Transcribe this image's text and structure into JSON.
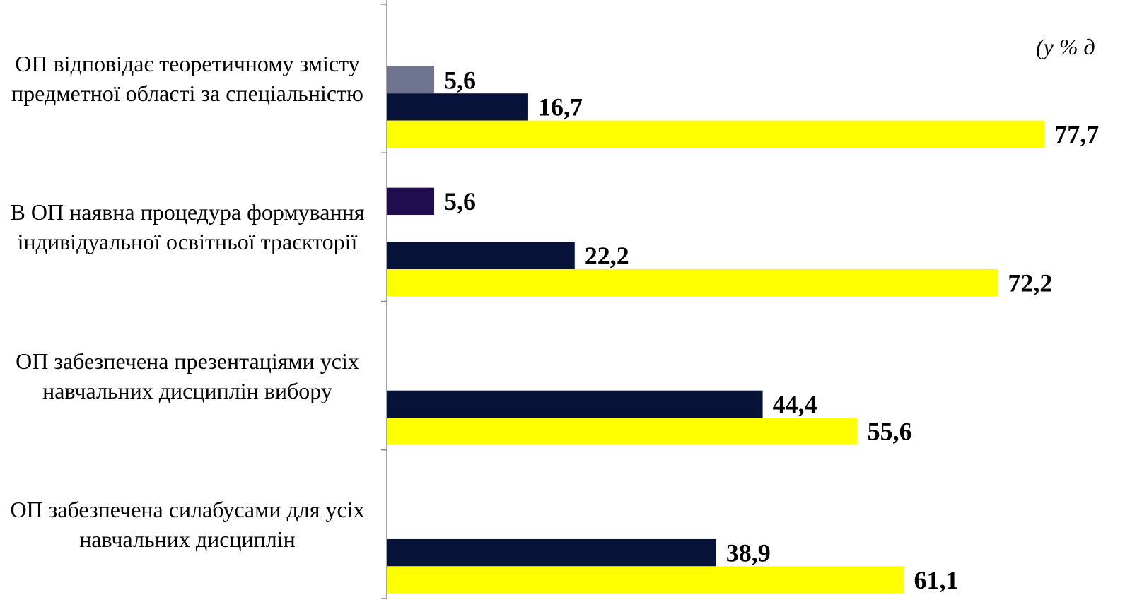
{
  "chart_data": {
    "type": "hbar",
    "subtitle": "(у % д",
    "categories": [
      "ОП відповідає теоретичному змісту предметної області за спеціальністю",
      "В ОП наявна процедура формування індивідуальної освітньої траєкторії",
      "ОП забезпечена презентаціями усіх навчальних дисциплін вибору",
      "ОП забезпечена силабусами для усіх навчальних дисциплін"
    ],
    "series": [
      {
        "color": "#1f0d50",
        "values": [
          null,
          5.6,
          null,
          null
        ],
        "value_labels": [
          null,
          "5,6",
          null,
          null
        ]
      },
      {
        "color": "#6f7490",
        "values": [
          5.6,
          null,
          null,
          null
        ],
        "value_labels": [
          "5,6",
          null,
          null,
          null
        ]
      },
      {
        "color": "#061238",
        "values": [
          16.7,
          22.2,
          44.4,
          38.9
        ],
        "value_labels": [
          "16,7",
          "22,2",
          "44,4",
          "38,9"
        ]
      },
      {
        "color": "#ffff00",
        "values": [
          77.7,
          72.2,
          55.6,
          61.1
        ],
        "value_labels": [
          "77,7",
          "72,2",
          "55,6",
          "61,1"
        ]
      }
    ],
    "xlim": [
      0,
      87.2
    ]
  }
}
